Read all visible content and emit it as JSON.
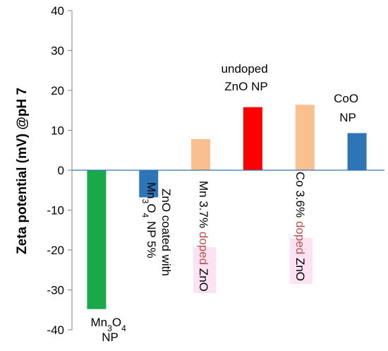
{
  "chart_data": {
    "type": "bar",
    "ylabel": "Zeta potential (mV) @pH 7",
    "ylim": [
      -40,
      40
    ],
    "yticks": [
      -40,
      -30,
      -20,
      -10,
      0,
      10,
      20,
      30,
      40
    ],
    "grid": false,
    "zero_line_color": "#2e75b6",
    "categories": [
      "Mn3O4 NP",
      "ZnO coated with Mn3O4 NP 5%",
      "Mn 3.7% doped ZnO",
      "undoped ZnO NP",
      "Co 3.6% doped ZnO",
      "CoO NP"
    ],
    "values": [
      -34.8,
      -6.8,
      7.8,
      15.8,
      16.4,
      9.3
    ],
    "colors": [
      "#1aa94a",
      "#2e75b6",
      "#fac090",
      "#ff0000",
      "#fac090",
      "#2e75b6"
    ],
    "label_parts": {
      "mn3o4": {
        "a": "Mn",
        "b": "3",
        "c": "O",
        "d": "4",
        "e": "NP"
      },
      "coated": {
        "l1": "ZnO coated with",
        "a": "Mn",
        "b": "3",
        "c": "O",
        "d": "4",
        "e": " NP  5%"
      },
      "mn_doped": {
        "a": "Mn 3.7% ",
        "b": "doped",
        "c": " ZnO"
      },
      "undoped": {
        "l1": "undoped",
        "l2": "ZnO NP"
      },
      "co_doped": {
        "a": "Co 3.6% ",
        "b": "doped",
        "c": " ZnO"
      },
      "coo": {
        "l1": "CoO",
        "l2": "NP"
      }
    },
    "doped_word_color": "#c0504d"
  }
}
